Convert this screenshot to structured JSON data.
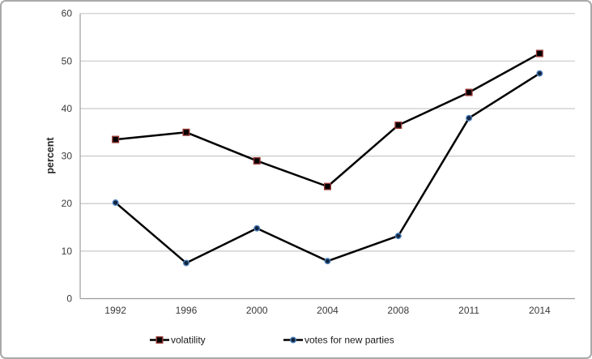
{
  "figure": {
    "description": "Static line chart figure with two series over election years"
  },
  "chart_data": {
    "type": "line",
    "title": "",
    "xlabel": "",
    "ylabel": "percent",
    "categories": [
      "1992",
      "1996",
      "2000",
      "2004",
      "2008",
      "2011",
      "2014"
    ],
    "series": [
      {
        "name": "volatility",
        "values": [
          33.5,
          35,
          29,
          23.6,
          36.5,
          43.4,
          51.6
        ],
        "line_color": "#000000",
        "marker_shape": "square",
        "marker_fill": "#000000",
        "marker_border": "#953735"
      },
      {
        "name": "votes for new parties",
        "values": [
          20.2,
          7.5,
          14.8,
          7.9,
          13.2,
          38,
          47.4
        ],
        "line_color": "#000000",
        "marker_shape": "circle",
        "marker_fill": "#10253f",
        "marker_border": "#4f81bd"
      }
    ],
    "ylim": [
      0,
      60
    ],
    "yticks": [
      0,
      10,
      20,
      30,
      40,
      50,
      60
    ],
    "grid": true,
    "legend_position": "bottom"
  },
  "colors": {
    "background": "#ffffff",
    "frame_border": "#a9a9a9",
    "gridline": "#c9c9c9",
    "axis_line": "#9c9c9c",
    "tick_label": "#3a3a3a",
    "axis_title": "#262626",
    "legend_text": "#1a1a1a"
  }
}
